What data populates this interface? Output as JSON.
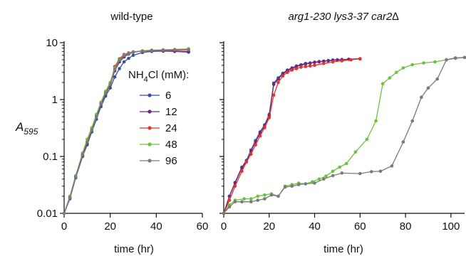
{
  "y_axis": {
    "label_main": "A",
    "label_sub": "595",
    "ticks": [
      {
        "value": 0.01,
        "label": "0.01"
      },
      {
        "value": 0.1,
        "label": "0.1"
      },
      {
        "value": 1,
        "label": "1"
      },
      {
        "value": 10,
        "label": "10"
      }
    ]
  },
  "legend": {
    "title_main": "NH",
    "title_sub": "4",
    "title_rest": "Cl (mM):"
  },
  "colors": {
    "6": "#3b4fa0",
    "12": "#6b2a7a",
    "24": "#e8302e",
    "48": "#6cc13f",
    "96": "#7a7a7a"
  },
  "chart_data": [
    {
      "type": "line",
      "title": "wild-type",
      "xlabel": "time (hr)",
      "ylabel": "A595",
      "xlim": [
        0,
        60
      ],
      "ylim": [
        0.01,
        10
      ],
      "yscale": "log",
      "xticks": [
        0,
        20,
        40,
        60
      ],
      "legend_position": "right-center",
      "series": [
        {
          "name": "6",
          "color": "#3b4fa0",
          "x": [
            0,
            2.5,
            5,
            8,
            10,
            12,
            14,
            16,
            18,
            20,
            22,
            24,
            26,
            28,
            30,
            34,
            38,
            43,
            48,
            54
          ],
          "y": [
            0.01,
            0.018,
            0.042,
            0.1,
            0.16,
            0.27,
            0.45,
            0.75,
            1.15,
            1.6,
            2.5,
            3.5,
            4.6,
            5.3,
            6.0,
            6.7,
            7.0,
            7.1,
            7.0,
            6.8
          ]
        },
        {
          "name": "12",
          "color": "#6b2a7a",
          "x": [
            0,
            2.5,
            5,
            8,
            10,
            12,
            14,
            16,
            18,
            20,
            22,
            24,
            26,
            28,
            30,
            34,
            38,
            43,
            48,
            54
          ],
          "y": [
            0.01,
            0.019,
            0.044,
            0.105,
            0.17,
            0.29,
            0.5,
            0.82,
            1.25,
            1.8,
            3.2,
            4.6,
            5.6,
            6.3,
            6.8,
            7.1,
            7.2,
            7.1,
            7.1,
            7.0
          ]
        },
        {
          "name": "24",
          "color": "#e8302e",
          "x": [
            0,
            2.5,
            5,
            8,
            10,
            12,
            14,
            16,
            18,
            20,
            22,
            24,
            26,
            28,
            30,
            34,
            38,
            43,
            48,
            54
          ],
          "y": [
            0.01,
            0.019,
            0.045,
            0.108,
            0.18,
            0.3,
            0.53,
            0.88,
            1.35,
            1.9,
            3.8,
            5.2,
            6.2,
            6.6,
            6.9,
            7.1,
            7.2,
            7.3,
            7.4,
            7.5
          ]
        },
        {
          "name": "48",
          "color": "#6cc13f",
          "x": [
            0,
            2.5,
            5,
            8,
            10,
            12,
            14,
            16,
            18,
            20,
            22,
            24,
            26,
            28,
            30,
            34,
            38,
            43,
            48,
            54
          ],
          "y": [
            0.01,
            0.02,
            0.046,
            0.115,
            0.2,
            0.32,
            0.55,
            0.9,
            1.4,
            2.0,
            3.6,
            5.0,
            6.0,
            6.5,
            6.9,
            7.2,
            7.4,
            7.5,
            7.6,
            7.8
          ]
        },
        {
          "name": "96",
          "color": "#7a7a7a",
          "x": [
            0,
            2.5,
            5,
            8,
            10,
            12,
            14,
            16,
            18,
            20,
            22,
            24,
            26,
            28,
            30,
            34,
            38,
            43,
            48,
            54
          ],
          "y": [
            0.01,
            0.019,
            0.044,
            0.108,
            0.18,
            0.29,
            0.5,
            0.85,
            1.3,
            1.85,
            3.4,
            4.9,
            5.9,
            6.4,
            6.8,
            7.1,
            7.3,
            7.4,
            7.5,
            7.6
          ]
        }
      ]
    },
    {
      "type": "line",
      "title": "arg1-230 lys3-37 car2∆",
      "xlabel": "time (hr)",
      "ylabel": "",
      "xlim": [
        0,
        106
      ],
      "ylim": [
        0.01,
        10
      ],
      "yscale": "log",
      "xticks": [
        0,
        20,
        40,
        60,
        80,
        100
      ],
      "series": [
        {
          "name": "6",
          "color": "#3b4fa0",
          "x": [
            0,
            2.5,
            5,
            8,
            10,
            12,
            14,
            16,
            18,
            20,
            22,
            24,
            26,
            28,
            30,
            32,
            34,
            36,
            38,
            40,
            42,
            44,
            46,
            48,
            50,
            52,
            55,
            60
          ],
          "y": [
            0.01,
            0.02,
            0.035,
            0.065,
            0.085,
            0.13,
            0.19,
            0.27,
            0.36,
            0.55,
            1.95,
            2.4,
            2.9,
            3.3,
            3.6,
            3.9,
            4.1,
            4.3,
            4.4,
            4.55,
            4.65,
            4.75,
            4.85,
            4.95,
            5.0,
            5.05,
            5.1,
            5.2
          ]
        },
        {
          "name": "12",
          "color": "#6b2a7a",
          "x": [
            0,
            2.5,
            5,
            8,
            10,
            12,
            14,
            16,
            18,
            20,
            22,
            24,
            26,
            28,
            30,
            32,
            34,
            36,
            38,
            40,
            42,
            44,
            46,
            48,
            50,
            52,
            55,
            60
          ],
          "y": [
            0.01,
            0.02,
            0.034,
            0.063,
            0.082,
            0.125,
            0.18,
            0.26,
            0.34,
            0.52,
            1.85,
            2.3,
            2.8,
            3.2,
            3.5,
            3.8,
            4.0,
            4.2,
            4.35,
            4.5,
            4.6,
            4.7,
            4.8,
            4.9,
            4.95,
            5.0,
            5.1,
            5.2
          ]
        },
        {
          "name": "24",
          "color": "#e8302e",
          "x": [
            0,
            2.5,
            5,
            8,
            10,
            12,
            14,
            16,
            18,
            20,
            22,
            24,
            26,
            28,
            30,
            32,
            34,
            36,
            38,
            40,
            44,
            48,
            52,
            56,
            60
          ],
          "y": [
            0.01,
            0.017,
            0.03,
            0.055,
            0.08,
            0.11,
            0.16,
            0.23,
            0.32,
            0.48,
            1.2,
            2.0,
            2.6,
            3.0,
            3.3,
            3.5,
            3.7,
            3.8,
            3.9,
            4.0,
            4.3,
            4.6,
            4.8,
            5.0,
            5.2
          ]
        },
        {
          "name": "48",
          "color": "#6cc13f",
          "x": [
            0,
            2.5,
            5,
            9,
            12,
            15,
            18,
            21,
            24,
            27,
            30,
            33,
            36,
            39,
            42,
            45,
            48,
            51,
            54,
            58,
            63,
            67,
            70,
            73,
            76,
            79,
            83,
            88,
            93,
            98,
            102,
            106
          ],
          "y": [
            0.01,
            0.014,
            0.017,
            0.018,
            0.018,
            0.02,
            0.021,
            0.022,
            0.02,
            0.03,
            0.032,
            0.034,
            0.033,
            0.036,
            0.04,
            0.045,
            0.055,
            0.065,
            0.075,
            0.12,
            0.2,
            0.42,
            1.9,
            2.4,
            3.0,
            3.6,
            4.1,
            4.4,
            4.6,
            5.0,
            5.3,
            5.5
          ]
        },
        {
          "name": "96",
          "color": "#7a7a7a",
          "x": [
            0,
            2.5,
            5,
            8,
            12,
            15,
            18,
            21,
            24,
            27,
            30,
            33,
            36,
            40,
            44,
            48,
            52,
            60,
            65,
            69,
            74,
            79,
            83,
            87,
            90,
            94,
            98,
            102,
            106
          ],
          "y": [
            0.01,
            0.013,
            0.016,
            0.016,
            0.016,
            0.017,
            0.018,
            0.021,
            0.02,
            0.029,
            0.03,
            0.032,
            0.033,
            0.034,
            0.04,
            0.046,
            0.051,
            0.05,
            0.054,
            0.055,
            0.068,
            0.18,
            0.42,
            1.1,
            1.6,
            2.3,
            5.0,
            5.4,
            5.5
          ]
        }
      ]
    }
  ]
}
